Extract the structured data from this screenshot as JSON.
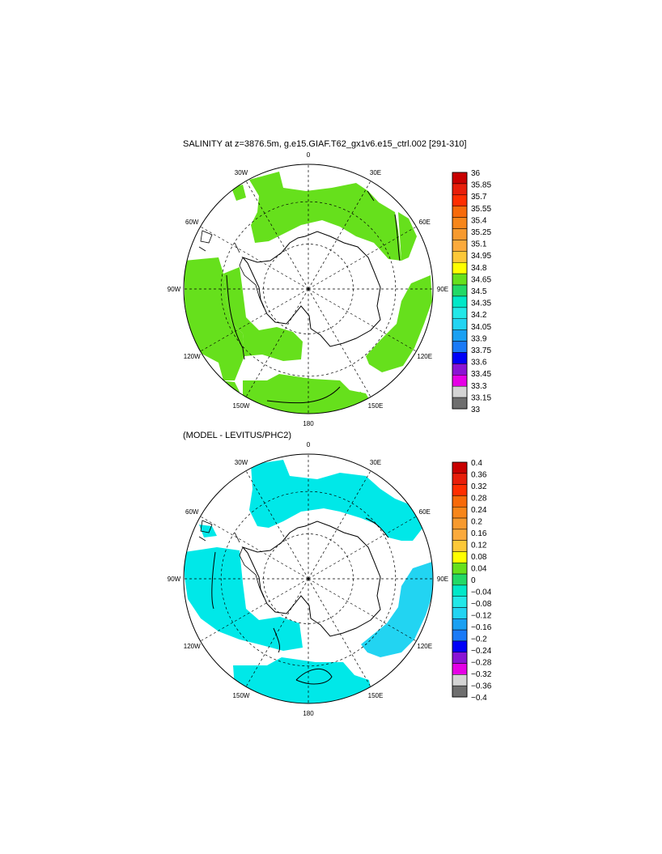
{
  "panels": [
    {
      "title": "SALINITY at z=3876.5m, g.e15.GIAF.T62_gx1v6.e15_ctrl.002 [291-310]",
      "lon_labels": [
        "0",
        "30E",
        "60E",
        "90E",
        "120E",
        "150E",
        "180",
        "150W",
        "120W",
        "90W",
        "60W",
        "30W"
      ],
      "colorbar": {
        "ticks": [
          "36",
          "35.85",
          "35.7",
          "35.55",
          "35.4",
          "35.25",
          "35.1",
          "34.95",
          "34.8",
          "34.65",
          "34.5",
          "34.35",
          "34.2",
          "34.05",
          "33.9",
          "33.75",
          "33.6",
          "33.45",
          "33.3",
          "33.15",
          "33"
        ]
      },
      "field_colors": {
        "main": "#66e01c",
        "secondary": "#33d94d"
      }
    },
    {
      "title": "(MODEL - LEVITUS/PHC2)",
      "lon_labels": [
        "0",
        "30E",
        "60E",
        "90E",
        "120E",
        "150E",
        "180",
        "150W",
        "120W",
        "90W",
        "60W",
        "30W"
      ],
      "colorbar": {
        "ticks": [
          "0.4",
          "0.36",
          "0.32",
          "0.28",
          "0.24",
          "0.2",
          "0.16",
          "0.12",
          "0.08",
          "0.04",
          "0",
          "−0.04",
          "−0.08",
          "−0.12",
          "−0.16",
          "−0.2",
          "−0.24",
          "−0.28",
          "−0.32",
          "−0.36",
          "−0.4"
        ]
      },
      "field_colors": {
        "main": "#00e8e8",
        "secondary": "#22d4f2"
      }
    }
  ],
  "colorbar_colors": [
    "#c80000",
    "#e81e0a",
    "#ff2e00",
    "#f76a0a",
    "#f7861a",
    "#f79a2e",
    "#fbaa3c",
    "#fcc838",
    "#ffff00",
    "#66e01c",
    "#22d966",
    "#00e8c8",
    "#22e8e8",
    "#22d4f2",
    "#1aa0f2",
    "#1a7af7",
    "#0000f7",
    "#8a14d4",
    "#e600e6",
    "#d4d4d4",
    "#6e6e6e"
  ]
}
